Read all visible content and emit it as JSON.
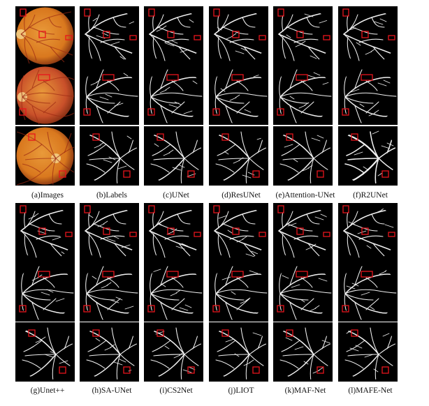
{
  "captions_top": [
    "(a)Images",
    "(b)Labels",
    "(c)UNet",
    "(d)ResUNet",
    "(e)Attention-UNet",
    "(f)R2UNet"
  ],
  "captions_bottom": [
    "(g)Unet++",
    "(h)SA-UNet",
    "(i)CS2Net",
    "(j)LIOT",
    "(k)MAF-Net",
    "(l)MAFE-Net"
  ],
  "colors": {
    "background": "#ffffff",
    "vessel_panel": "#000000",
    "vessel": "#f0f0f0",
    "highlight_box": "#e8141c",
    "fundus_orange": "#d9781e",
    "fundus_red": "#c4401c"
  }
}
